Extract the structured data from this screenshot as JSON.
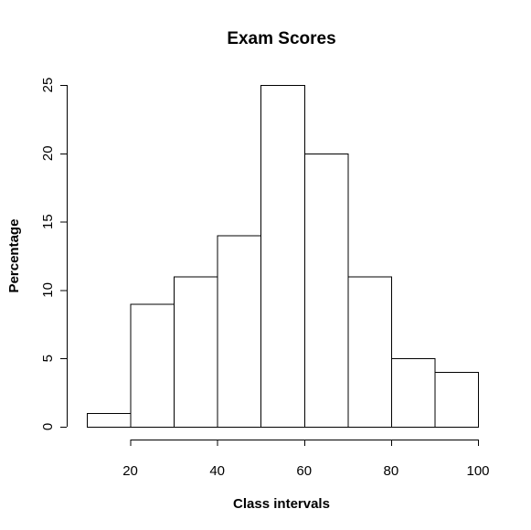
{
  "chart_data": {
    "type": "bar",
    "title": "Exam Scores",
    "xlabel": "Class intervals",
    "ylabel": "Percentage",
    "bins": [
      {
        "from": 10,
        "to": 20,
        "value": 1
      },
      {
        "from": 20,
        "to": 30,
        "value": 9
      },
      {
        "from": 30,
        "to": 40,
        "value": 11
      },
      {
        "from": 40,
        "to": 50,
        "value": 14
      },
      {
        "from": 50,
        "to": 60,
        "value": 25
      },
      {
        "from": 60,
        "to": 70,
        "value": 20
      },
      {
        "from": 70,
        "to": 80,
        "value": 11
      },
      {
        "from": 80,
        "to": 90,
        "value": 5
      },
      {
        "from": 90,
        "to": 100,
        "value": 4
      }
    ],
    "xlim": [
      10,
      100
    ],
    "ylim": [
      0,
      25
    ],
    "xticks": [
      20,
      40,
      60,
      80,
      100
    ],
    "xtick_labels": [
      "20",
      "40",
      "60",
      "80",
      "100"
    ],
    "yticks": [
      0,
      5,
      10,
      15,
      20,
      25
    ],
    "ytick_labels": [
      "0",
      "5",
      "10",
      "15",
      "20",
      "25"
    ],
    "grid": false,
    "colors": {
      "bar_fill": "#ffffff",
      "bar_stroke": "#000000"
    }
  }
}
